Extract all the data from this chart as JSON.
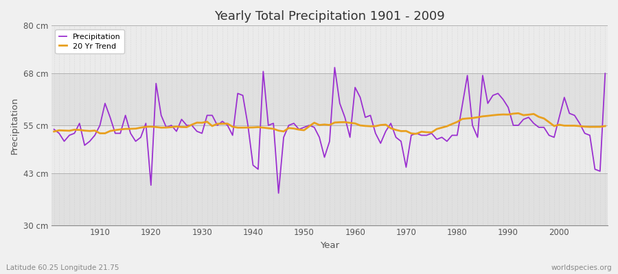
{
  "title": "Yearly Total Precipitation 1901 - 2009",
  "xlabel": "Year",
  "ylabel": "Precipitation",
  "subtitle": "Latitude 60.25 Longitude 21.75",
  "watermark": "worldspecies.org",
  "years": [
    1901,
    1902,
    1903,
    1904,
    1905,
    1906,
    1907,
    1908,
    1909,
    1910,
    1911,
    1912,
    1913,
    1914,
    1915,
    1916,
    1917,
    1918,
    1919,
    1920,
    1921,
    1922,
    1923,
    1924,
    1925,
    1926,
    1927,
    1928,
    1929,
    1930,
    1931,
    1932,
    1933,
    1934,
    1935,
    1936,
    1937,
    1938,
    1939,
    1940,
    1941,
    1942,
    1943,
    1944,
    1945,
    1946,
    1947,
    1948,
    1949,
    1950,
    1951,
    1952,
    1953,
    1954,
    1955,
    1956,
    1957,
    1958,
    1959,
    1960,
    1961,
    1962,
    1963,
    1964,
    1965,
    1966,
    1967,
    1968,
    1969,
    1970,
    1971,
    1972,
    1973,
    1974,
    1975,
    1976,
    1977,
    1978,
    1979,
    1980,
    1981,
    1982,
    1983,
    1984,
    1985,
    1986,
    1987,
    1988,
    1989,
    1990,
    1991,
    1992,
    1993,
    1994,
    1995,
    1996,
    1997,
    1998,
    1999,
    2000,
    2001,
    2002,
    2003,
    2004,
    2005,
    2006,
    2007,
    2008,
    2009
  ],
  "precip": [
    54.0,
    53.0,
    51.0,
    52.5,
    53.0,
    55.5,
    50.0,
    51.0,
    52.5,
    55.0,
    60.5,
    57.0,
    53.0,
    53.0,
    57.5,
    53.0,
    51.0,
    52.0,
    55.5,
    40.0,
    65.5,
    57.5,
    54.5,
    55.0,
    53.5,
    56.5,
    55.0,
    55.0,
    53.5,
    53.0,
    57.5,
    57.5,
    55.0,
    56.0,
    55.0,
    52.5,
    63.0,
    62.5,
    55.0,
    45.0,
    44.0,
    68.5,
    55.0,
    55.5,
    38.0,
    52.0,
    55.0,
    55.5,
    54.0,
    54.5,
    55.0,
    54.5,
    52.0,
    47.0,
    51.0,
    69.5,
    60.5,
    57.0,
    52.0,
    64.5,
    62.0,
    57.0,
    57.5,
    53.0,
    50.5,
    53.5,
    55.5,
    52.0,
    51.0,
    44.5,
    52.5,
    53.0,
    52.5,
    52.5,
    53.0,
    51.5,
    52.0,
    51.0,
    52.5,
    52.5,
    60.0,
    67.5,
    55.0,
    52.0,
    67.5,
    60.5,
    62.5,
    63.0,
    61.5,
    59.5,
    55.0,
    55.0,
    56.5,
    57.0,
    55.5,
    54.5,
    54.5,
    52.5,
    52.0,
    57.0,
    62.0,
    58.0,
    57.5,
    55.5,
    53.0,
    52.5,
    44.0,
    43.5,
    68.0
  ],
  "precip_color": "#9B30D0",
  "trend_color": "#E8A020",
  "band_colors": [
    "#E8E8E8",
    "#F0F0F0"
  ],
  "bg_color": "#F0F0F0",
  "ylim": [
    30,
    80
  ],
  "yticks": [
    30,
    43,
    55,
    68,
    80
  ],
  "ytick_labels": [
    "30 cm",
    "43 cm",
    "55 cm",
    "68 cm",
    "80 cm"
  ],
  "xtick_start": 1910,
  "xtick_end": 2000,
  "xtick_step": 10,
  "trend_window": 20
}
